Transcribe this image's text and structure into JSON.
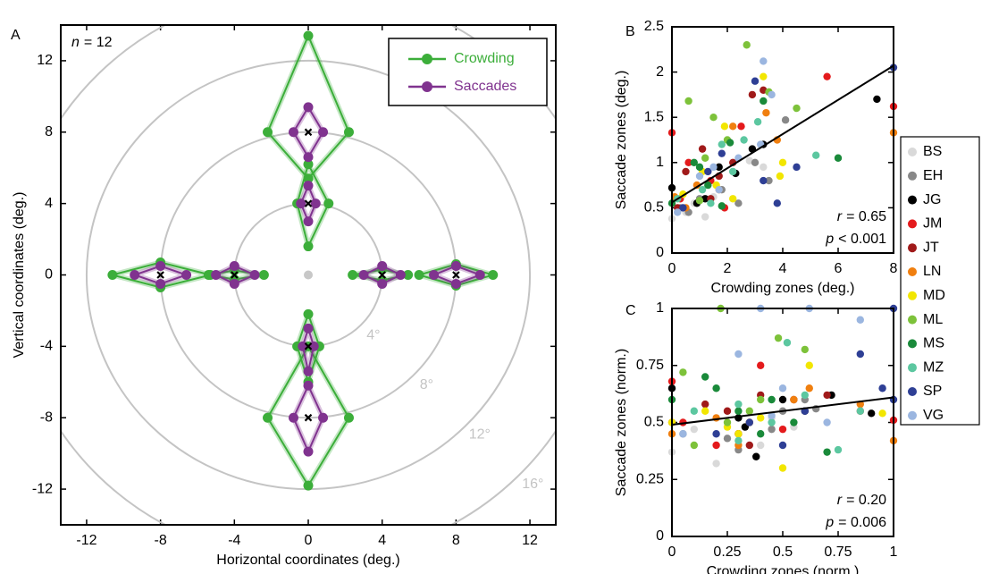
{
  "chart_data": [
    {
      "type": "polygon",
      "label": "A",
      "annotation": {
        "symbol": "n",
        "text": "= 12"
      },
      "x_label": "Horizontal coordinates (deg.)",
      "y_label": "Vertical coordinates (deg.)",
      "xlim": [
        -13.4,
        13.4
      ],
      "ylim": [
        -14,
        14
      ],
      "xticks": [
        -12,
        -8,
        -4,
        0,
        4,
        8,
        12
      ],
      "yticks": [
        -12,
        -8,
        -4,
        0,
        4,
        8,
        12
      ],
      "rings": [
        {
          "value": 4,
          "label": "4°"
        },
        {
          "value": 8,
          "label": "8°"
        },
        {
          "value": 12,
          "label": "12°"
        },
        {
          "value": 16,
          "label": "16°"
        }
      ],
      "legend": "upper right",
      "fixation": {
        "x": 0,
        "y": 0,
        "color": "#c8c8c8"
      },
      "targets": {
        "x": [
          0,
          0,
          0,
          0,
          -8,
          -4,
          4,
          8
        ],
        "y": [
          8,
          4,
          -4,
          -8,
          0,
          0,
          0,
          0
        ]
      },
      "series": [
        {
          "name": "Crowding",
          "color": "#3cae3a",
          "shapes": [
            {
              "x": [
                0,
                2.2,
                0,
                -2.2
              ],
              "y": [
                13.4,
                8,
                5.4,
                8
              ]
            },
            {
              "x": [
                0,
                1.1,
                0,
                -0.6
              ],
              "y": [
                6.2,
                4,
                1.6,
                4
              ]
            },
            {
              "x": [
                0,
                0.6,
                0,
                -0.6
              ],
              "y": [
                -2.2,
                -4,
                -6.0,
                -4
              ]
            },
            {
              "x": [
                0,
                2.2,
                0,
                -2.2
              ],
              "y": [
                -4.0,
                -8,
                -11.8,
                -8
              ]
            },
            {
              "x": [
                -8,
                -5.3,
                -8,
                -10.6
              ],
              "y": [
                0.7,
                0,
                -0.7,
                0
              ]
            },
            {
              "x": [
                -4,
                -2.4,
                -4,
                -5.4
              ],
              "y": [
                0.25,
                0,
                -0.25,
                0
              ]
            },
            {
              "x": [
                4,
                5.4,
                4,
                2.4
              ],
              "y": [
                0.3,
                0,
                -0.3,
                0
              ]
            },
            {
              "x": [
                8,
                10.0,
                8,
                6.0
              ],
              "y": [
                0.6,
                0,
                -0.6,
                0
              ]
            }
          ]
        },
        {
          "name": "Saccades",
          "color": "#80338f",
          "shapes": [
            {
              "x": [
                0,
                0.8,
                0,
                -0.8
              ],
              "y": [
                9.4,
                8,
                6.6,
                8
              ]
            },
            {
              "x": [
                0,
                0.4,
                0,
                -0.4
              ],
              "y": [
                5.0,
                4,
                3.0,
                4
              ]
            },
            {
              "x": [
                0,
                0.3,
                0,
                -0.3
              ],
              "y": [
                -3.0,
                -4,
                -5.4,
                -4
              ]
            },
            {
              "x": [
                0,
                0.8,
                0,
                -0.8
              ],
              "y": [
                -6.2,
                -8,
                -9.9,
                -8
              ]
            },
            {
              "x": [
                -8,
                -6.6,
                -8,
                -9.4
              ],
              "y": [
                0.5,
                0,
                -0.5,
                0
              ]
            },
            {
              "x": [
                -4,
                -2.9,
                -4,
                -5.0
              ],
              "y": [
                0.5,
                0,
                -0.5,
                0
              ]
            },
            {
              "x": [
                4,
                5.0,
                4,
                3.0
              ],
              "y": [
                0.5,
                0,
                -0.5,
                0
              ]
            },
            {
              "x": [
                8,
                9.3,
                8,
                6.8
              ],
              "y": [
                0.5,
                0,
                -0.5,
                0
              ]
            }
          ]
        }
      ]
    },
    {
      "type": "scatter",
      "label": "B",
      "x_label": "Crowding zones (deg.)",
      "y_label": "Saccade zones (deg.)",
      "xlim": [
        0,
        8
      ],
      "ylim": [
        0,
        2.5
      ],
      "xticks": [
        0,
        2,
        4,
        6,
        8
      ],
      "yticks": [
        0,
        0.5,
        1,
        1.5,
        2,
        2.5
      ],
      "fit": {
        "x": [
          0,
          8
        ],
        "y": [
          0.56,
          2.07
        ]
      },
      "stats": [
        {
          "symbol": "r",
          "text": "= 0.65"
        },
        {
          "symbol": "p",
          "text": "< 0.001"
        }
      ],
      "legend": "right",
      "series": [
        {
          "name": "BS",
          "color": "#d9d9d9",
          "x": [
            0,
            0.5,
            1.2,
            1.5,
            2.2,
            2.8,
            3.3,
            0.8
          ],
          "values": [
            0.38,
            0.45,
            0.4,
            0.62,
            0.9,
            1.02,
            0.95,
            0.55
          ]
        },
        {
          "name": "EH",
          "color": "#888888",
          "x": [
            0.3,
            1.0,
            1.8,
            2.4,
            3.0,
            4.1,
            3.5,
            0.6
          ],
          "values": [
            0.5,
            0.6,
            0.7,
            0.55,
            1.0,
            1.47,
            0.8,
            0.45
          ]
        },
        {
          "name": "JG",
          "color": "#000000",
          "x": [
            0,
            0.9,
            1.7,
            2.3,
            2.9,
            3.3,
            7.4,
            1.2
          ],
          "values": [
            0.72,
            0.55,
            0.95,
            0.88,
            1.15,
            1.2,
            1.7,
            0.6
          ]
        },
        {
          "name": "JM",
          "color": "#e41a1c",
          "x": [
            0,
            0.6,
            1.4,
            2.5,
            5.6,
            8,
            1.9,
            0.3
          ],
          "values": [
            1.33,
            1.0,
            0.8,
            1.4,
            1.95,
            1.62,
            0.5,
            0.6
          ]
        },
        {
          "name": "JT",
          "color": "#a01a1a",
          "x": [
            0.5,
            1.1,
            1.7,
            2.9,
            3.3,
            1.4,
            2.2,
            0.2
          ],
          "values": [
            0.9,
            1.15,
            0.85,
            1.75,
            1.8,
            0.6,
            1.0,
            0.5
          ]
        },
        {
          "name": "LN",
          "color": "#f07f0f",
          "x": [
            0.1,
            0.9,
            1.7,
            2.2,
            3.4,
            3.8,
            8,
            0.5
          ],
          "values": [
            0.62,
            0.75,
            0.7,
            1.4,
            1.55,
            1.25,
            1.33,
            0.5
          ]
        },
        {
          "name": "MD",
          "color": "#f2e600",
          "x": [
            0.4,
            1.1,
            1.9,
            2.2,
            3.3,
            3.9,
            4.0,
            1.6
          ],
          "values": [
            0.65,
            0.9,
            1.4,
            0.6,
            1.95,
            0.85,
            1.0,
            0.75
          ]
        },
        {
          "name": "ML",
          "color": "#7dc23a",
          "x": [
            0.6,
            1.2,
            1.5,
            2.7,
            3.5,
            4.5,
            1.0,
            2.0
          ],
          "values": [
            1.68,
            1.05,
            1.5,
            2.3,
            1.78,
            1.6,
            0.58,
            1.25
          ]
        },
        {
          "name": "MS",
          "color": "#1a8a3a",
          "x": [
            0,
            0.8,
            1.0,
            2.1,
            3.3,
            6.0,
            1.8,
            1.3
          ],
          "values": [
            0.55,
            1.0,
            0.95,
            1.22,
            1.68,
            1.05,
            0.52,
            0.75
          ]
        },
        {
          "name": "MZ",
          "color": "#5cc7a0",
          "x": [
            0.2,
            1.1,
            1.8,
            2.6,
            3.1,
            5.2,
            2.2,
            1.4
          ],
          "values": [
            0.6,
            0.7,
            1.2,
            1.25,
            1.45,
            1.08,
            0.9,
            0.55
          ]
        },
        {
          "name": "SP",
          "color": "#2e3f95",
          "x": [
            0.4,
            1.3,
            1.8,
            3.0,
            3.3,
            3.8,
            4.5,
            8
          ],
          "values": [
            0.5,
            0.9,
            1.1,
            1.9,
            0.8,
            0.55,
            0.95,
            2.05
          ]
        },
        {
          "name": "VG",
          "color": "#9bb6e0",
          "x": [
            0.2,
            1.0,
            1.7,
            2.4,
            3.2,
            3.3,
            3.6,
            1.5
          ],
          "values": [
            0.45,
            0.85,
            0.7,
            1.05,
            1.2,
            2.12,
            1.75,
            0.95
          ]
        }
      ]
    },
    {
      "type": "scatter",
      "label": "C",
      "x_label": "Crowding zones (norm.)",
      "y_label": "Saccade zones (norm.)",
      "xlim": [
        0,
        1
      ],
      "ylim": [
        0,
        1
      ],
      "xticks": [
        0,
        0.25,
        0.5,
        0.75,
        1
      ],
      "yticks": [
        0,
        0.25,
        0.5,
        0.75,
        1
      ],
      "fit": {
        "x": [
          0,
          1
        ],
        "y": [
          0.49,
          0.61
        ]
      },
      "stats": [
        {
          "symbol": "r",
          "text": "= 0.20"
        },
        {
          "symbol": "p",
          "text": "= 0.006"
        }
      ],
      "series": [
        {
          "x": [
            0,
            0.2,
            0.3,
            0.45,
            0.55,
            0.6,
            0.4,
            0.1
          ],
          "values": [
            0.37,
            0.32,
            0.45,
            0.52,
            0.48,
            0.55,
            0.4,
            0.47
          ]
        },
        {
          "x": [
            0.05,
            0.25,
            0.35,
            0.5,
            0.65,
            0.3,
            0.45,
            0.6
          ],
          "values": [
            0.45,
            0.43,
            0.5,
            0.55,
            0.56,
            0.38,
            0.47,
            0.6
          ]
        },
        {
          "x": [
            0,
            0.3,
            0.38,
            0.5,
            0.6,
            0.72,
            0.9,
            0.33
          ],
          "values": [
            0.65,
            0.52,
            0.35,
            0.6,
            0.55,
            0.62,
            0.54,
            0.48
          ]
        },
        {
          "x": [
            0,
            0.05,
            0.4,
            0.5,
            0.85,
            1,
            0.3,
            0.2
          ],
          "values": [
            0.68,
            0.5,
            0.75,
            0.47,
            0.55,
            0.51,
            0.45,
            0.4
          ]
        },
        {
          "x": [
            0,
            0.25,
            0.3,
            0.4,
            0.55,
            0.7,
            0.35,
            0.15
          ],
          "values": [
            0.5,
            0.55,
            0.45,
            0.62,
            0.6,
            0.62,
            0.4,
            0.58
          ]
        },
        {
          "x": [
            0,
            0.2,
            0.35,
            0.55,
            0.62,
            0.85,
            1,
            0.3
          ],
          "values": [
            0.45,
            0.52,
            0.5,
            0.6,
            0.65,
            0.58,
            0.42,
            0.4
          ]
        },
        {
          "x": [
            0,
            0.15,
            0.25,
            0.4,
            0.5,
            0.62,
            0.95,
            0.3
          ],
          "values": [
            0.5,
            0.55,
            0.48,
            0.52,
            0.3,
            0.75,
            0.54,
            0.45
          ]
        },
        {
          "x": [
            0.05,
            0.22,
            0.25,
            0.4,
            0.48,
            0.6,
            0.1,
            0.35
          ],
          "values": [
            0.72,
            1.0,
            0.5,
            0.6,
            0.87,
            0.82,
            0.4,
            0.55
          ]
        },
        {
          "x": [
            0,
            0.15,
            0.3,
            0.45,
            0.55,
            0.7,
            0.4,
            0.2
          ],
          "values": [
            0.6,
            0.7,
            0.55,
            0.6,
            0.5,
            0.37,
            0.45,
            0.65
          ]
        },
        {
          "x": [
            0.1,
            0.3,
            0.45,
            0.52,
            0.75,
            0.3,
            0.6,
            0.85
          ],
          "values": [
            0.55,
            0.58,
            0.5,
            0.85,
            0.38,
            0.42,
            0.62,
            0.55
          ]
        },
        {
          "x": [
            0.2,
            0.35,
            0.5,
            0.6,
            0.85,
            1,
            0.95,
            1
          ],
          "values": [
            0.45,
            0.5,
            0.4,
            0.55,
            0.8,
            1.0,
            0.65,
            0.6
          ]
        },
        {
          "x": [
            0.05,
            0.3,
            0.45,
            0.5,
            0.62,
            0.7,
            0.85,
            0.4
          ],
          "values": [
            0.45,
            0.8,
            0.53,
            0.65,
            1.0,
            0.5,
            0.95,
            1.0
          ]
        }
      ]
    }
  ]
}
